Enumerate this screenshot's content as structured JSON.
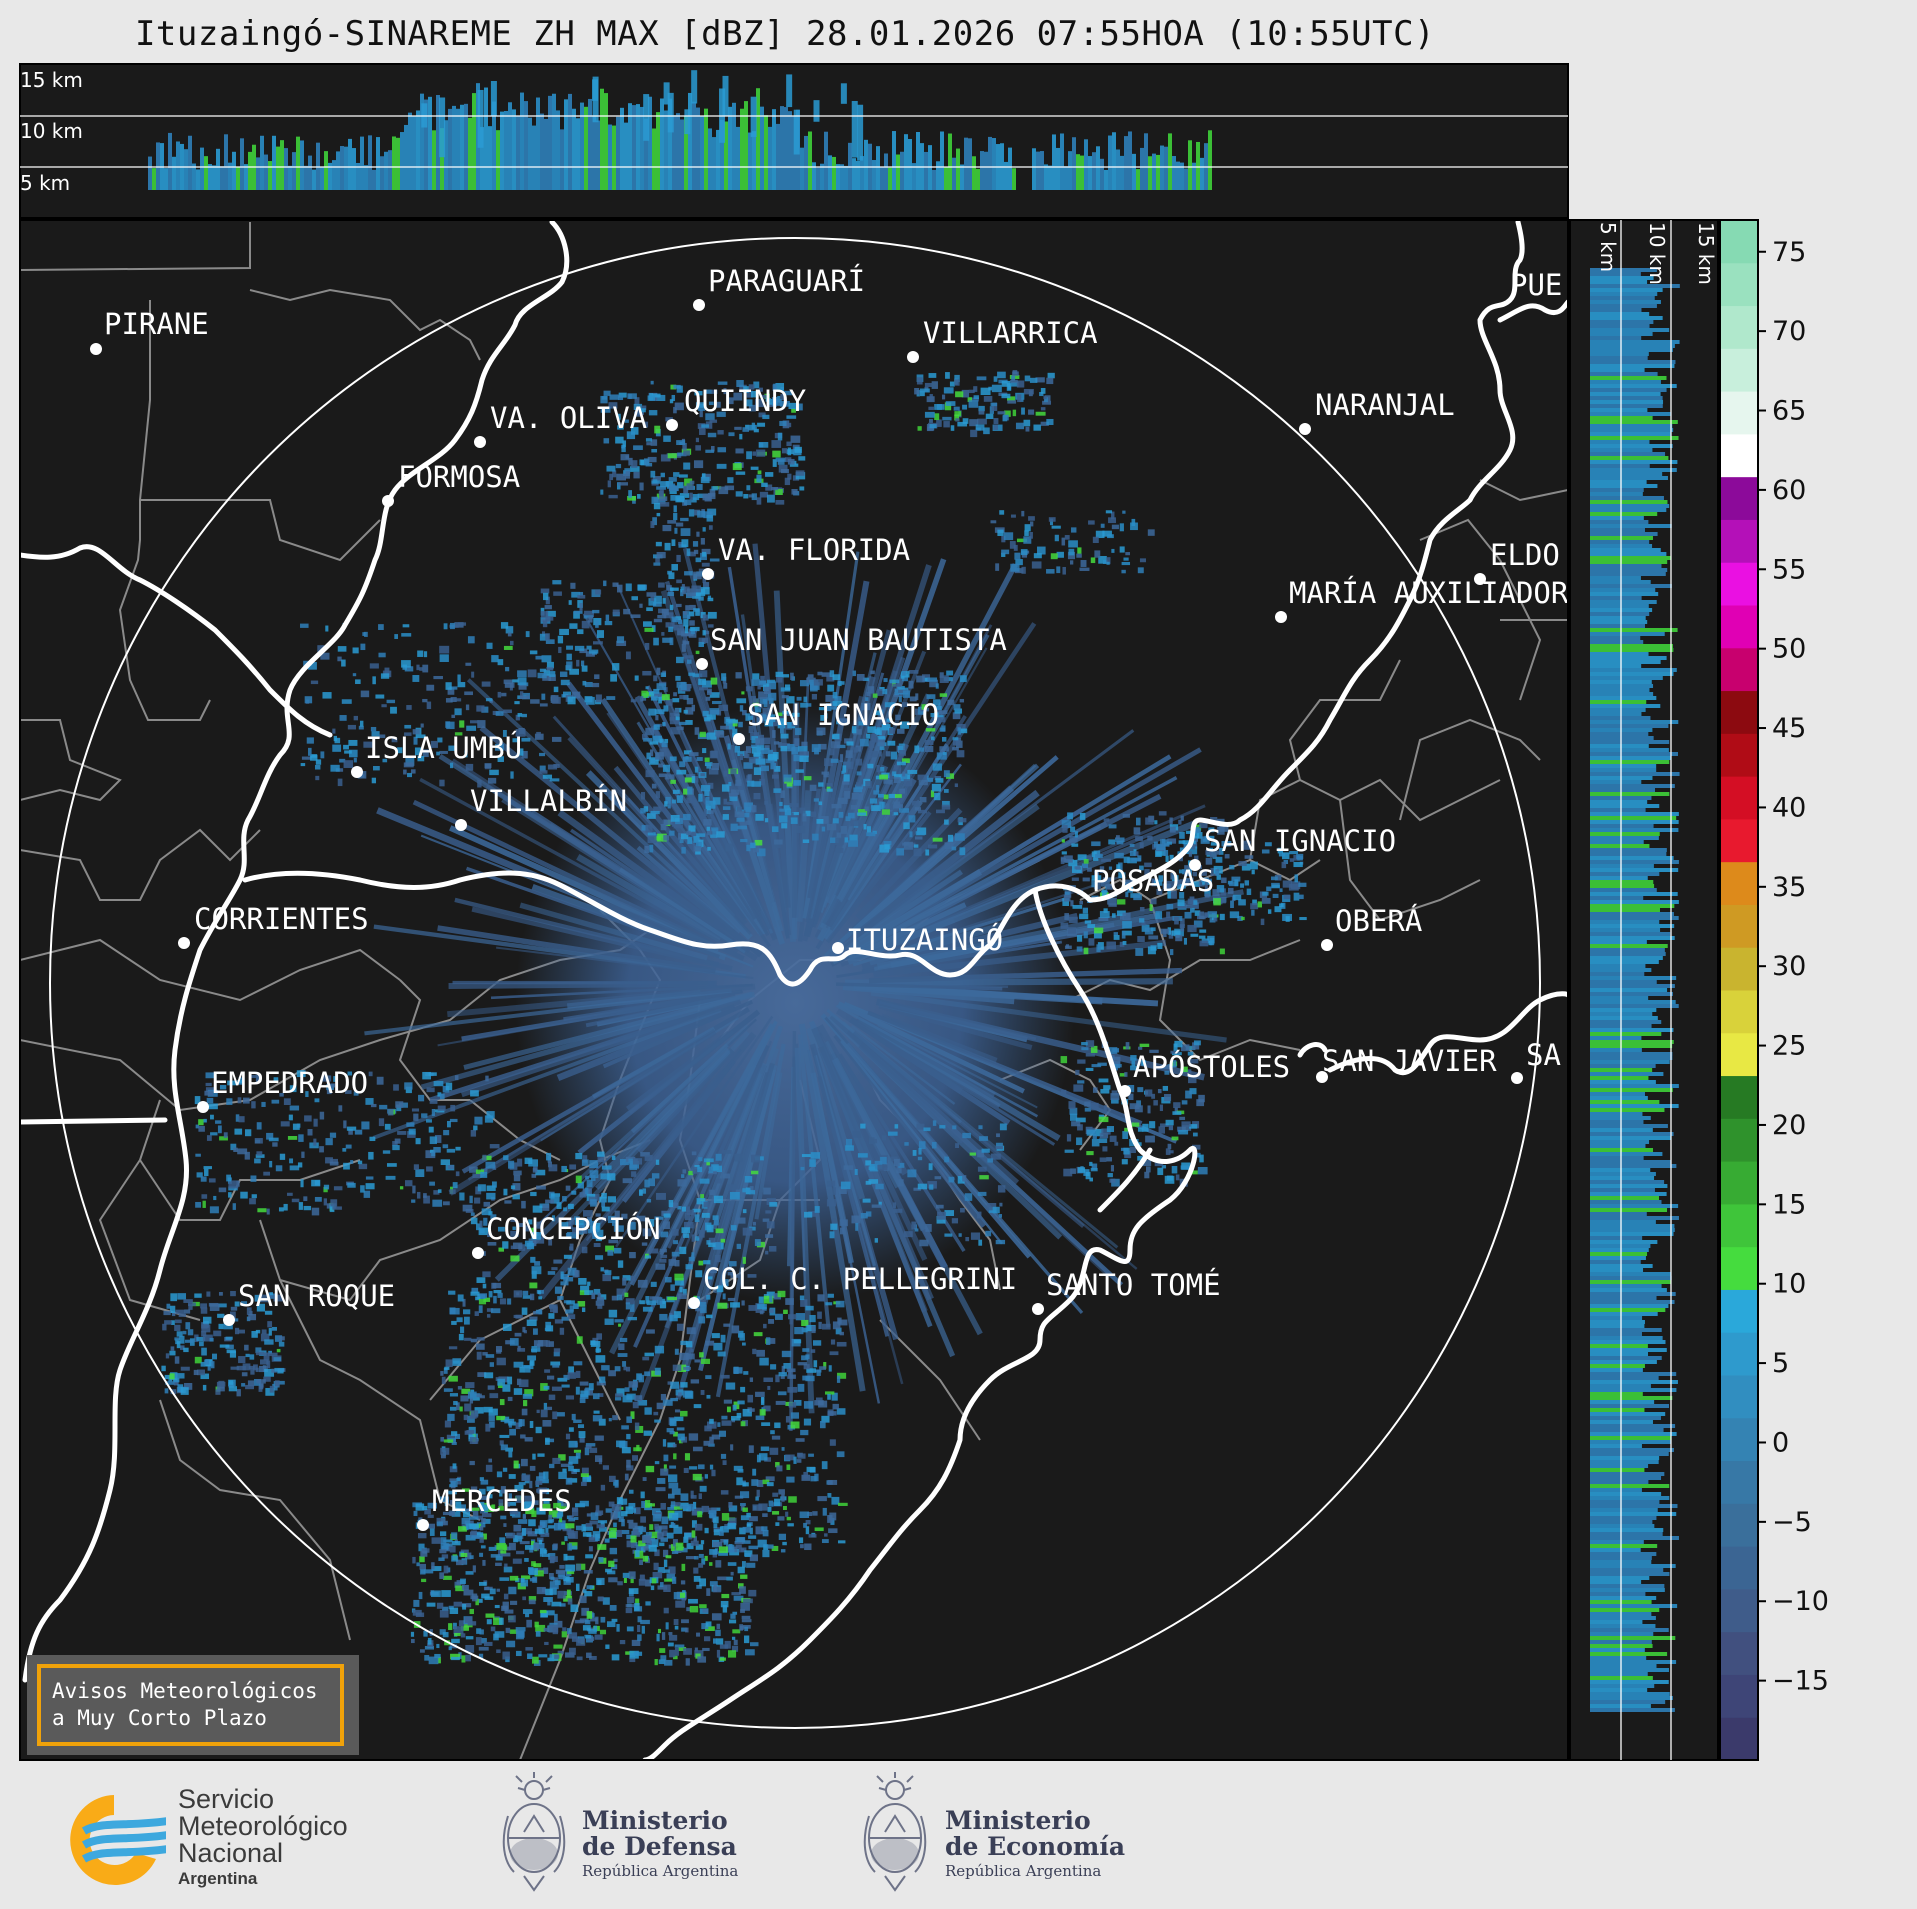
{
  "title": "Ituzaingó-SINAREME ZH MAX [dBZ] 28.01.2026 07:55HOA (10:55UTC)",
  "top_panel": {
    "height_labels": [
      "15 km",
      "10 km",
      "5 km"
    ]
  },
  "side_panel": {
    "height_labels": [
      "5 km",
      "10 km",
      "15 km"
    ]
  },
  "colorbar": {
    "unit": "dBZ",
    "ticks": [
      "75",
      "70",
      "65",
      "60",
      "55",
      "50",
      "45",
      "40",
      "35",
      "30",
      "25",
      "20",
      "15",
      "10",
      "5",
      "0",
      "−5",
      "−10",
      "−15"
    ],
    "colors": [
      "#3b3a6b",
      "#3e4577",
      "#41507f",
      "#3f5c8a",
      "#3b6593",
      "#3a6f9b",
      "#3778a6",
      "#3483b3",
      "#318ec0",
      "#2e9acd",
      "#2aa8da",
      "#45dc3e",
      "#3fc53a",
      "#37ab33",
      "#2f922c",
      "#267a23",
      "#e8e844",
      "#d9d23a",
      "#c9b42f",
      "#cf9a23",
      "#dd8a1b",
      "#e8192e",
      "#d40e24",
      "#b00c16",
      "#8c0a10",
      "#c8006e",
      "#e000b4",
      "#ea10e2",
      "#b410b8",
      "#8c0a9a",
      "#ffffff",
      "#e6f6ee",
      "#c8efdc",
      "#b0e8cc",
      "#9ae1bf",
      "#86dab3"
    ]
  },
  "cities": [
    {
      "name": "PIRANE"
    },
    {
      "name": "PARAGUARÍ"
    },
    {
      "name": "VILLARRICA"
    },
    {
      "name": "VA. OLIVA"
    },
    {
      "name": "QUIINDY"
    },
    {
      "name": "NARANJAL"
    },
    {
      "name": "FORMOSA"
    },
    {
      "name": "VA. FLORIDA"
    },
    {
      "name": "ELDO"
    },
    {
      "name": "MARÍA AUXILIADOR"
    },
    {
      "name": "SAN JUAN BAUTISTA"
    },
    {
      "name": "SAN IGNACIO"
    },
    {
      "name": "ISLA UMBÚ"
    },
    {
      "name": "VILLALBÍN"
    },
    {
      "name": "SAN IGNACIO"
    },
    {
      "name": "POSADAS"
    },
    {
      "name": "CORRIENTES"
    },
    {
      "name": "ITUZAINGÓ"
    },
    {
      "name": "OBERÁ"
    },
    {
      "name": "EMPEDRADO"
    },
    {
      "name": "APÓSTOLES"
    },
    {
      "name": "SAN JAVIER"
    },
    {
      "name": "SA"
    },
    {
      "name": "CONCEPCIÓN"
    },
    {
      "name": "COL. C. PELLEGRINI"
    },
    {
      "name": "SANTO TOMÉ"
    },
    {
      "name": "SAN ROQUE"
    },
    {
      "name": "MERCEDES"
    },
    {
      "name": "PUE"
    }
  ],
  "warning_box": {
    "line1": "Avisos Meteorológicos",
    "line2": "a Muy Corto Plazo"
  },
  "logos": {
    "smn": {
      "line1": "Servicio",
      "line2": "Meteorológico",
      "line3": "Nacional",
      "line4": "Argentina"
    },
    "defensa": {
      "line1": "Ministerio",
      "line2": "de Defensa",
      "line3": "República Argentina"
    },
    "economia": {
      "line1": "Ministerio",
      "line2": "de Economía",
      "line3": "República Argentina"
    }
  },
  "colors": {
    "map_bg": "#1a1a1a",
    "border": "#ffffff",
    "province": "#8a8a8a",
    "echo_base": "#3a5f8e",
    "echo_light": "#2a9bd4",
    "echo_green": "#3fd23a",
    "warning_border": "#f0a20a"
  }
}
